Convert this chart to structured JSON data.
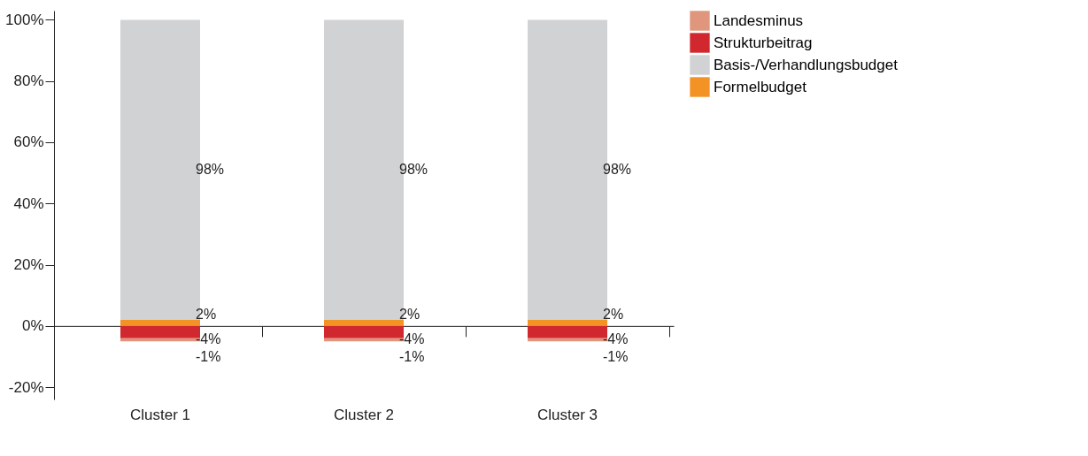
{
  "chart_data": {
    "type": "bar",
    "stacked": true,
    "categories": [
      "Cluster 1",
      "Cluster 2",
      "Cluster 3"
    ],
    "series": [
      {
        "name": "Formelbudget",
        "color": "#f39325",
        "values": [
          2,
          2,
          2
        ],
        "value_labels": [
          "2%",
          "2%",
          "2%"
        ]
      },
      {
        "name": "Basis-/Verhandlungsbudget",
        "color": "#d1d2d4",
        "values": [
          98,
          98,
          98
        ],
        "value_labels": [
          "98%",
          "98%",
          "98%"
        ]
      },
      {
        "name": "Strukturbeitrag",
        "color": "#d0282e",
        "values": [
          -4,
          -4,
          -4
        ],
        "value_labels": [
          "-4%",
          "-4%",
          "-4%"
        ]
      },
      {
        "name": "Landesminus",
        "color": "#e0957d",
        "values": [
          -1,
          -1,
          -1
        ],
        "value_labels": [
          "-1%",
          "-1%",
          "-1%"
        ]
      }
    ],
    "ylim": [
      -24,
      103
    ],
    "yticks": [
      {
        "value": -20,
        "label": "-20%"
      },
      {
        "value": 0,
        "label": "0%"
      },
      {
        "value": 20,
        "label": "20%"
      },
      {
        "value": 40,
        "label": "40%"
      },
      {
        "value": 60,
        "label": "60%"
      },
      {
        "value": 80,
        "label": "80%"
      },
      {
        "value": 100,
        "label": "100%"
      }
    ],
    "legend": "right"
  }
}
